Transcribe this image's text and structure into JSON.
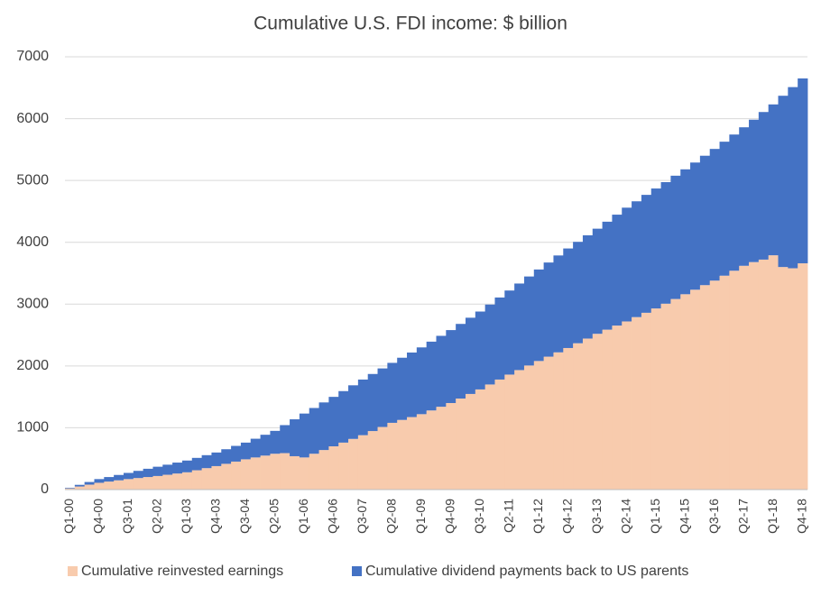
{
  "chart_data": {
    "type": "stacked_bar",
    "title": "Cumulative U.S. FDI income: $ billion",
    "categories": [
      "Q1-00",
      null,
      null,
      "Q4-00",
      null,
      null,
      "Q3-01",
      null,
      null,
      "Q2-02",
      null,
      null,
      "Q1-03",
      null,
      null,
      "Q4-03",
      null,
      null,
      "Q3-04",
      null,
      null,
      "Q2-05",
      null,
      null,
      "Q1-06",
      null,
      null,
      "Q4-06",
      null,
      null,
      "Q3-07",
      null,
      null,
      "Q2-08",
      null,
      null,
      "Q1-09",
      null,
      null,
      "Q4-09",
      null,
      null,
      "Q3-10",
      null,
      null,
      "Q2-11",
      null,
      null,
      "Q1-12",
      null,
      null,
      "Q4-12",
      null,
      null,
      "Q3-13",
      null,
      null,
      "Q2-14",
      null,
      null,
      "Q1-15",
      null,
      null,
      "Q4-15",
      null,
      null,
      "Q3-16",
      null,
      null,
      "Q2-17",
      null,
      null,
      "Q1-18",
      null,
      null,
      "Q4-18"
    ],
    "series": [
      {
        "name": "Cumulative reinvested earnings",
        "color": "#f8cbad",
        "values": [
          20,
          50,
          80,
          110,
          130,
          150,
          170,
          187,
          203,
          220,
          240,
          260,
          280,
          313,
          347,
          380,
          417,
          453,
          490,
          520,
          550,
          580,
          590,
          540,
          520,
          580,
          640,
          700,
          760,
          820,
          880,
          947,
          1013,
          1080,
          1127,
          1173,
          1220,
          1280,
          1340,
          1400,
          1473,
          1547,
          1620,
          1700,
          1780,
          1860,
          1933,
          2007,
          2080,
          2150,
          2220,
          2290,
          2367,
          2443,
          2520,
          2587,
          2653,
          2720,
          2790,
          2860,
          2930,
          3007,
          3083,
          3160,
          3233,
          3307,
          3380,
          3460,
          3540,
          3620,
          3680,
          3720,
          3790,
          3600,
          3580,
          3660
        ]
      },
      {
        "name": "Cumulative dividend payments back to US parents",
        "color": "#4472c4",
        "values": [
          10,
          27,
          43,
          60,
          73,
          87,
          100,
          116,
          134,
          150,
          163,
          177,
          190,
          200,
          210,
          220,
          236,
          254,
          270,
          303,
          337,
          370,
          453,
          597,
          710,
          740,
          770,
          800,
          833,
          867,
          900,
          923,
          947,
          970,
          1006,
          1044,
          1080,
          1113,
          1147,
          1180,
          1207,
          1233,
          1260,
          1293,
          1327,
          1360,
          1400,
          1440,
          1480,
          1523,
          1567,
          1610,
          1640,
          1670,
          1700,
          1746,
          1794,
          1840,
          1873,
          1907,
          1940,
          1966,
          1994,
          2020,
          2057,
          2093,
          2130,
          2167,
          2203,
          2240,
          2303,
          2387,
          2440,
          2770,
          2930,
          2990
        ]
      }
    ],
    "ylim": [
      0,
      7000
    ],
    "yticks": [
      0,
      1000,
      2000,
      3000,
      4000,
      5000,
      6000,
      7000
    ],
    "grid": true,
    "legend": "bottom"
  }
}
